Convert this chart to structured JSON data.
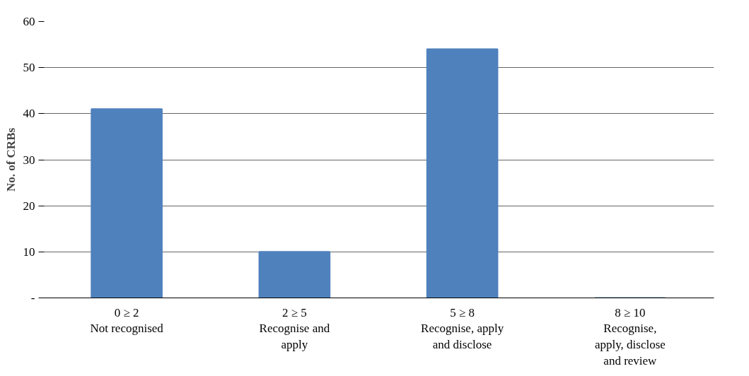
{
  "chart_data": {
    "type": "bar",
    "ylabel": "No. of CRBs",
    "categories": [
      "0 ≥ 2\nNot recognised",
      "2 ≥ 5\nRecognise and\napply",
      "5 ≥ 8\nRecognise, apply\nand disclose",
      "8 ≥ 10\nRecognise,\napply, disclose\nand review"
    ],
    "values": [
      41,
      10,
      54,
      0
    ],
    "color": "#4f81bd",
    "ylim": [
      0,
      60
    ],
    "yticks": [
      {
        "value": 0,
        "label": "-"
      },
      10,
      20,
      30,
      40,
      50,
      60
    ],
    "grid": "y"
  }
}
